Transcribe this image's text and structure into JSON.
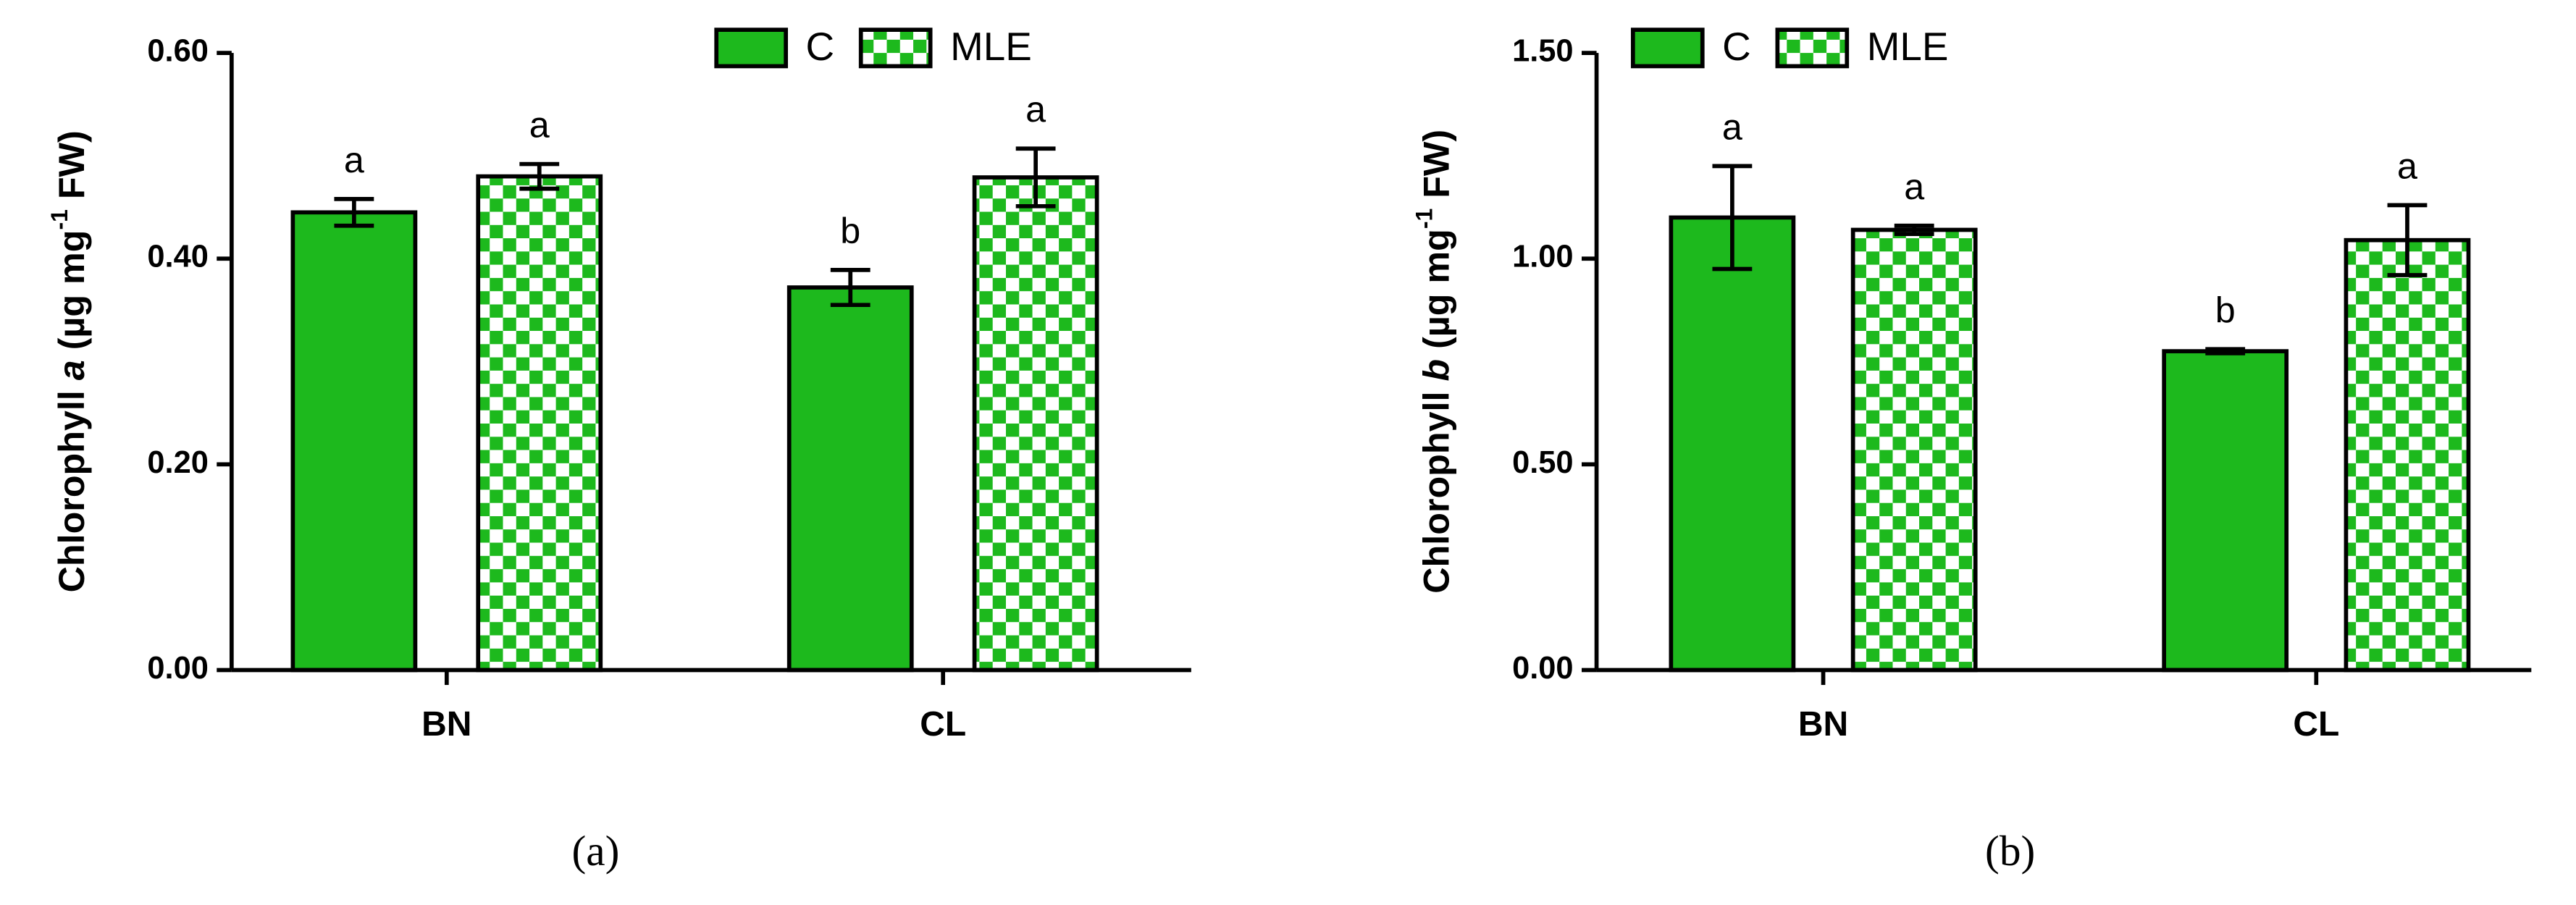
{
  "charts": [
    {
      "chart_data": {
        "type": "bar",
        "caption": "(a)",
        "y_label": {
          "prefix": "Chlorophyll ",
          "symbol": "a",
          "unit": " (µg mg",
          "exponent": "-1",
          "suffix": " FW)"
        },
        "categories": [
          "BN",
          "CL"
        ],
        "series": [
          {
            "name": "C",
            "color": "#1db91d",
            "fill": "solid",
            "values": [
              0.445,
              0.372
            ],
            "errors": [
              0.013,
              0.017
            ],
            "letters": [
              "a",
              "b"
            ]
          },
          {
            "name": "MLE",
            "color": "#1db91d",
            "fill": "checker",
            "values": [
              0.48,
              0.479
            ],
            "errors": [
              0.012,
              0.028
            ],
            "letters": [
              "a",
              "a"
            ]
          }
        ],
        "ylim": [
          0,
          0.6
        ],
        "yticks": [
          {
            "value": 0,
            "label": "0.00"
          },
          {
            "value": 0.2,
            "label": "0.20"
          },
          {
            "value": 0.4,
            "label": "0.40"
          },
          {
            "value": 0.6,
            "label": "0.60"
          }
        ]
      }
    },
    {
      "chart_data": {
        "type": "bar",
        "caption": "(b)",
        "y_label": {
          "prefix": "Chlorophyll ",
          "symbol": "b",
          "unit": " (µg mg",
          "exponent": "-1",
          "suffix": " FW)"
        },
        "categories": [
          "BN",
          "CL"
        ],
        "series": [
          {
            "name": "C",
            "color": "#1db91d",
            "fill": "solid",
            "values": [
              1.1,
              0.775
            ],
            "errors": [
              0.125,
              0.005
            ],
            "letters": [
              "a",
              "b"
            ]
          },
          {
            "name": "MLE",
            "color": "#1db91d",
            "fill": "checker",
            "values": [
              1.07,
              1.045
            ],
            "errors": [
              0.01,
              0.085
            ],
            "letters": [
              "a",
              "a"
            ]
          }
        ],
        "ylim": [
          0,
          1.5
        ],
        "yticks": [
          {
            "value": 0,
            "label": "0.00"
          },
          {
            "value": 0.5,
            "label": "0.50"
          },
          {
            "value": 1,
            "label": "1.00"
          },
          {
            "value": 1.5,
            "label": "1.50"
          }
        ]
      }
    }
  ]
}
